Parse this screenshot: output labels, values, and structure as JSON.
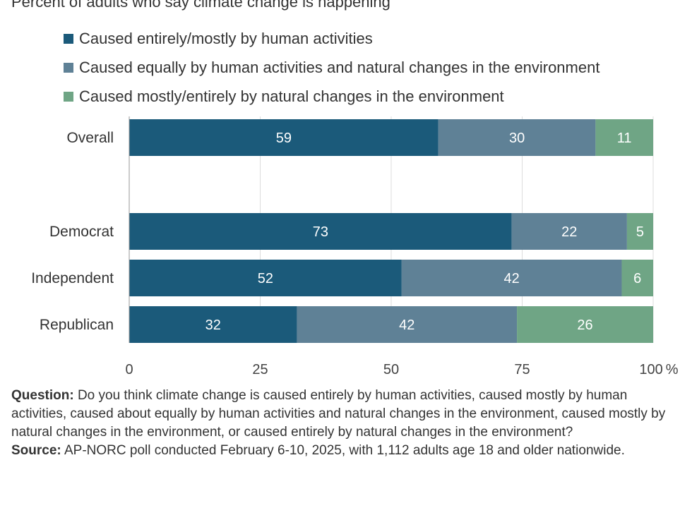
{
  "subtitle": "Percent of adults who say climate change is happening",
  "legend": [
    {
      "label": "Caused entirely/mostly by human activities",
      "color": "#1b5a7a"
    },
    {
      "label": "Caused equally by human activities and natural changes in the environment",
      "color": "#5f8196"
    },
    {
      "label": "Caused mostly/entirely by natural changes in the environment",
      "color": "#6fa585"
    }
  ],
  "chart_data": {
    "type": "bar",
    "orientation": "horizontal",
    "stacked": true,
    "categories": [
      "Overall",
      "Democrat",
      "Independent",
      "Republican"
    ],
    "series": [
      {
        "name": "Caused entirely/mostly by human activities",
        "values": [
          59,
          73,
          52,
          32
        ],
        "color": "#1b5a7a"
      },
      {
        "name": "Caused equally by human activities and natural changes in the environment",
        "values": [
          30,
          22,
          42,
          42
        ],
        "color": "#5f8196"
      },
      {
        "name": "Caused mostly/entirely by natural changes in the environment",
        "values": [
          11,
          5,
          6,
          26
        ],
        "color": "#6fa585"
      }
    ],
    "xlim": [
      0,
      100
    ],
    "xticks": [
      "0",
      "25",
      "50",
      "75",
      "100"
    ],
    "x_unit": "%",
    "grid": true,
    "legend_position": "top-left"
  },
  "footer": {
    "question_label": "Question:",
    "question_text": "Do you think climate change is caused entirely by human activities, caused mostly by human activities, caused about equally by human activities and natural changes in the environment, caused mostly by natural changes in the environment, or caused entirely by natural changes in the environment?",
    "source_label": "Source:",
    "source_text": "AP-NORC poll conducted February 6-10, 2025, with 1,112 adults age 18 and older nationwide."
  }
}
